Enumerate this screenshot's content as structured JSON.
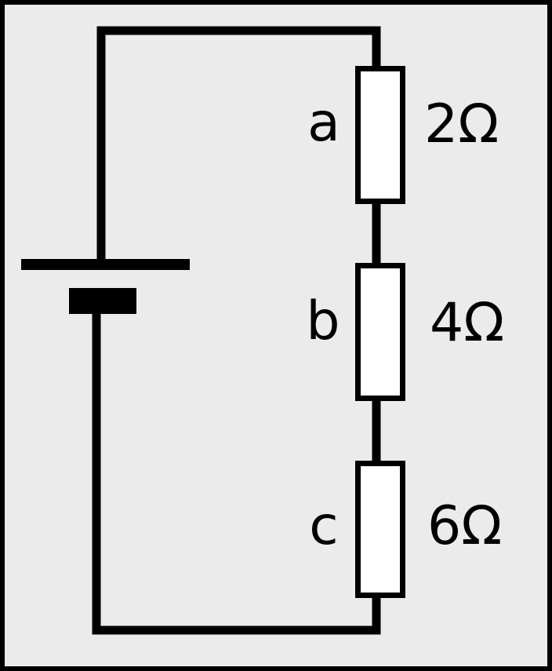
{
  "colors": {
    "background": "#ebebeb",
    "border": "#000000",
    "wire": "#000000",
    "resistor_fill": "#ffffff"
  },
  "circuit": {
    "battery": {
      "icon": "battery-cell-icon"
    },
    "resistors": [
      {
        "letter": "a",
        "value": "2Ω"
      },
      {
        "letter": "b",
        "value": "4Ω"
      },
      {
        "letter": "c",
        "value": "6Ω"
      }
    ]
  }
}
